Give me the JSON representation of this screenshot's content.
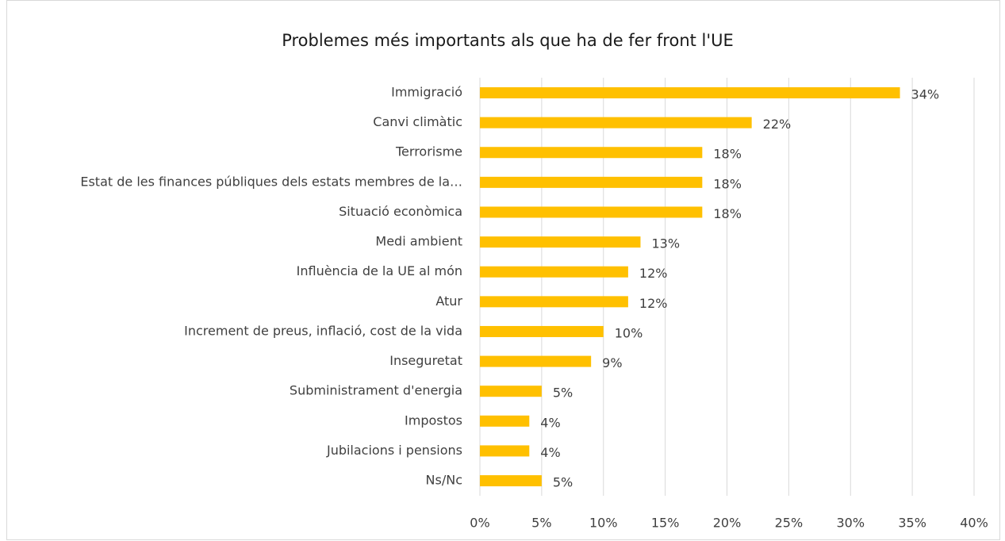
{
  "chart_data": {
    "type": "bar",
    "orientation": "horizontal",
    "title": "Problemes més importants als que ha de fer front l'UE",
    "categories": [
      "Immigració",
      "Canvi climàtic",
      "Terrorisme",
      "Estat de les finances públiques dels estats membres de la…",
      "Situació econòmica",
      "Medi ambient",
      "Influència de la UE al món",
      "Atur",
      "Increment de preus, inflació, cost de la vida",
      "Inseguretat",
      "Subministrament d'energia",
      "Impostos",
      "Jubilacions i pensions",
      "Ns/Nc"
    ],
    "values": [
      34,
      22,
      18,
      18,
      18,
      13,
      12,
      12,
      10,
      9,
      5,
      4,
      4,
      5
    ],
    "value_labels": [
      "34%",
      "22%",
      "18%",
      "18%",
      "18%",
      "13%",
      "12%",
      "12%",
      "10%",
      "9%",
      "5%",
      "4%",
      "4%",
      "5%"
    ],
    "color": "#ffc000",
    "xlim": [
      0,
      40
    ],
    "xticks": [
      {
        "value": 0,
        "label": "0%"
      },
      {
        "value": 5,
        "label": "5%"
      },
      {
        "value": 10,
        "label": "10%"
      },
      {
        "value": 15,
        "label": "15%"
      },
      {
        "value": 20,
        "label": "20%"
      },
      {
        "value": 25,
        "label": "25%"
      },
      {
        "value": 30,
        "label": "30%"
      },
      {
        "value": 35,
        "label": "35%"
      },
      {
        "value": 40,
        "label": "40%"
      }
    ],
    "grid": true
  }
}
